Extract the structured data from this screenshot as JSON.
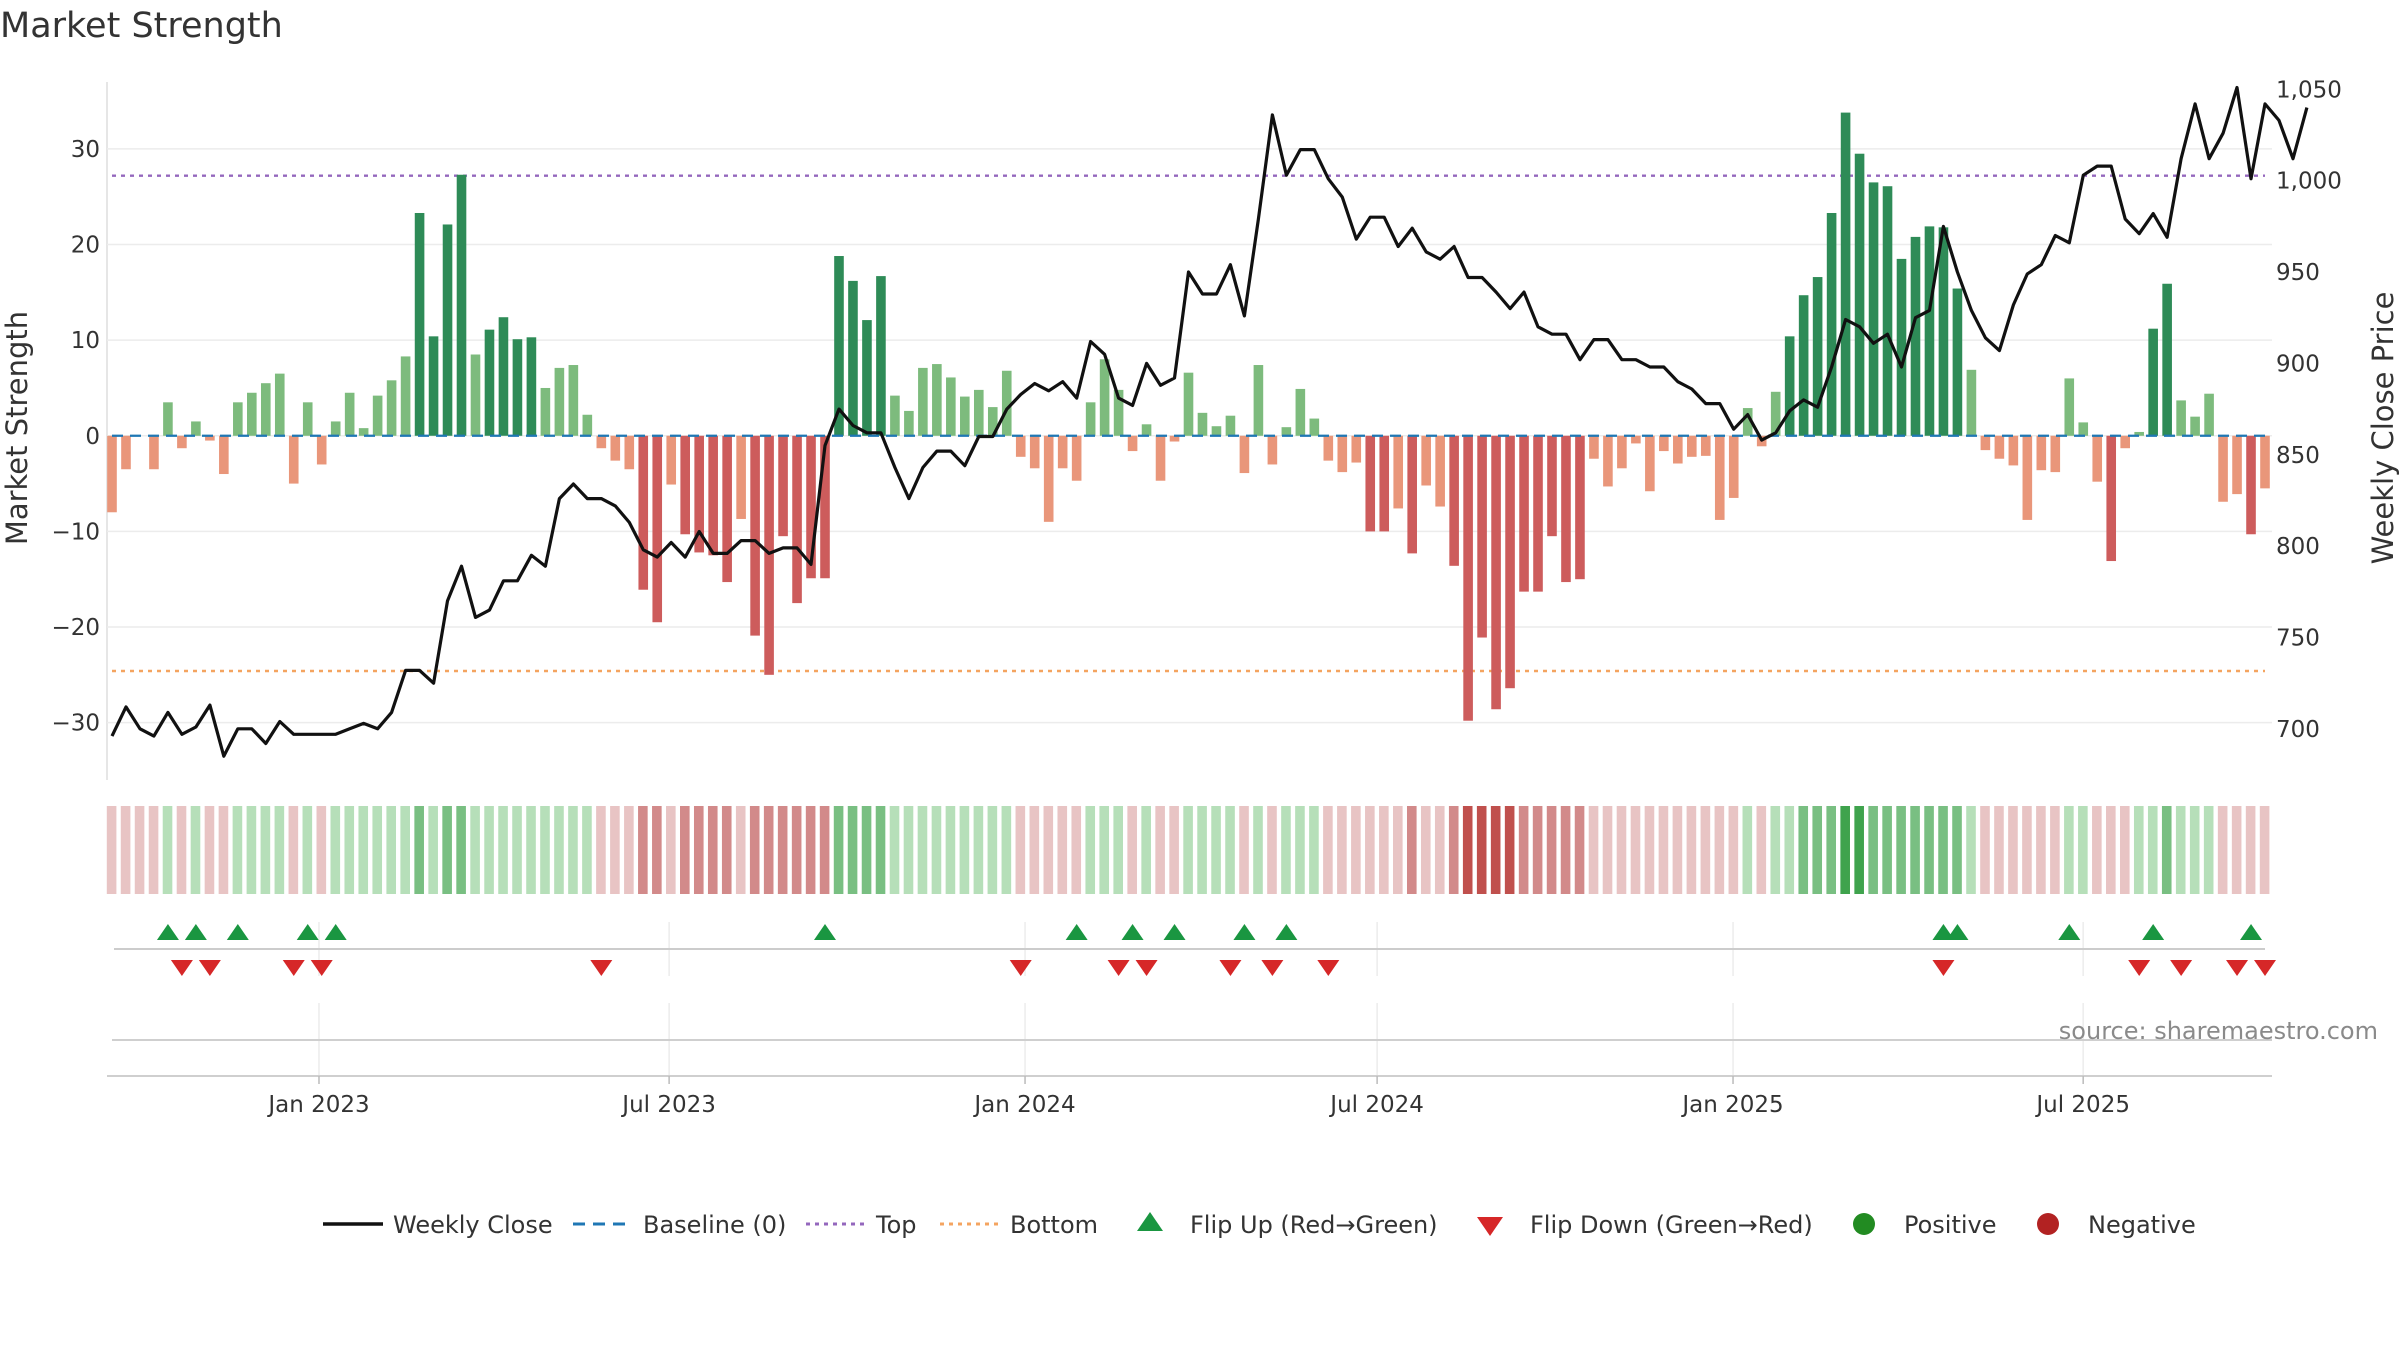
{
  "chart_data": {
    "type": "bar",
    "title": "Market Strength",
    "ylabel": "Market Strength",
    "y2label": "Weekly Close Price",
    "ylim": [
      -36,
      37
    ],
    "y2lim": [
      672,
      1054
    ],
    "yticks": [
      30,
      20,
      10,
      0,
      -10,
      -20,
      -30
    ],
    "yticklabels": [
      "30",
      "20",
      "10",
      "0",
      "−10",
      "−20",
      "−30"
    ],
    "y2ticks": [
      1050,
      1000,
      950,
      900,
      850,
      800,
      750,
      700
    ],
    "y2ticklabels": [
      "1,050",
      "1,000",
      "950",
      "900",
      "850",
      "800",
      "750",
      "700"
    ],
    "x_dates": [
      "2022-09-16",
      "2025-10-03"
    ],
    "xticks": [
      "Jan 2023",
      "Jul 2023",
      "Jan 2024",
      "Jul 2024",
      "Jan 2025",
      "Jul 2025"
    ],
    "top": 27.2,
    "bottom": -24.6,
    "baseline": 0,
    "strength": [
      -8,
      -3.5,
      0,
      -3.5,
      3.5,
      -1.3,
      1.5,
      -0.5,
      -4,
      3.5,
      4.5,
      5.5,
      6.5,
      -5,
      3.5,
      -3,
      1.5,
      4.5,
      0.8,
      4.2,
      5.8,
      8.3,
      23.3,
      10.4,
      22.1,
      27.3,
      8.5,
      11.1,
      12.4,
      10.1,
      10.3,
      5,
      7.1,
      7.4,
      2.2,
      -1.3,
      -2.6,
      -3.5,
      -16.1,
      -19.5,
      -5.1,
      -10.3,
      -12.2,
      -12.5,
      -15.3,
      -8.7,
      -20.9,
      -25,
      -10.5,
      -17.5,
      -14.9,
      -14.9,
      18.8,
      16.2,
      12.1,
      16.7,
      4.2,
      2.6,
      7.1,
      7.5,
      6.1,
      4.1,
      4.8,
      3,
      6.8,
      -2.2,
      -3.4,
      -9,
      -3.4,
      -4.7,
      3.5,
      8,
      4.8,
      -1.6,
      1.2,
      -4.7,
      -0.6,
      6.6,
      2.4,
      1,
      2.1,
      -3.9,
      7.4,
      -3,
      0.9,
      4.9,
      1.8,
      -2.6,
      -3.8,
      -2.8,
      -10,
      -10,
      -7.6,
      -12.3,
      -5.2,
      -7.4,
      -13.6,
      -29.8,
      -21.1,
      -28.6,
      -26.4,
      -16.3,
      -16.3,
      -10.5,
      -15.3,
      -15,
      -2.4,
      -5.3,
      -3.4,
      -0.8,
      -5.8,
      -1.6,
      -2.9,
      -2.2,
      -2.1,
      -8.8,
      -6.5,
      2.9,
      -1.1,
      4.6,
      10.4,
      14.7,
      16.6,
      23.3,
      33.8,
      29.5,
      26.5,
      26.1,
      18.5,
      20.8,
      21.9,
      21.8,
      15.4,
      6.9,
      -1.5,
      -2.4,
      -3.1,
      -8.8,
      -3.6,
      -3.8,
      6,
      1.4,
      -4.8,
      -13.1,
      -1.3,
      0.4,
      11.2,
      15.9,
      3.7,
      2,
      4.4,
      -6.9,
      -6.1,
      -10.3,
      -5.5
    ],
    "weekly_close": [
      696,
      712,
      700,
      696,
      709,
      697,
      701,
      713,
      685,
      700,
      700,
      692,
      704,
      697,
      697,
      697,
      697,
      700,
      703,
      700,
      709,
      732,
      732,
      725,
      770,
      789,
      761,
      765,
      781,
      781,
      795,
      789,
      826,
      834,
      826,
      826,
      822,
      813,
      798,
      794,
      802,
      794,
      808,
      796,
      796,
      803,
      803,
      796,
      799,
      799,
      790,
      855,
      875,
      866,
      862,
      862,
      843,
      826,
      843,
      852,
      852,
      844,
      860,
      860,
      875,
      883,
      889,
      885,
      890,
      881,
      912,
      905,
      881,
      877,
      900,
      888,
      892,
      950,
      938,
      938,
      954,
      926,
      979,
      1036,
      1003,
      1017,
      1017,
      1001,
      991,
      968,
      980,
      980,
      964,
      974,
      961,
      957,
      964,
      947,
      947,
      939,
      930,
      939,
      920,
      916,
      916,
      902,
      913,
      913,
      902,
      902,
      898,
      898,
      890,
      886,
      878,
      878,
      864,
      872,
      858,
      862,
      874,
      880,
      876,
      898,
      924,
      920,
      911,
      916,
      898,
      925,
      929,
      975,
      950,
      929,
      914,
      907,
      932,
      949,
      954,
      970,
      966,
      1003,
      1008,
      1008,
      979,
      971,
      982,
      969,
      1012,
      1042,
      1012,
      1026,
      1051,
      1001,
      1042,
      1033,
      1012,
      1040
    ],
    "color_band": [
      -1,
      -1,
      -1,
      -1,
      1,
      -1,
      1,
      -1,
      -1,
      1,
      1,
      1,
      1,
      -1,
      1,
      -1,
      1,
      1,
      1,
      1,
      1,
      1,
      2,
      1,
      2,
      2,
      1,
      1,
      1,
      1,
      1,
      1,
      1,
      1,
      1,
      -1,
      -1,
      -1,
      -2,
      -2,
      -1,
      -2,
      -2,
      -2,
      -2,
      -1,
      -2,
      -2,
      -2,
      -2,
      -2,
      -2,
      2,
      2,
      2,
      2,
      1,
      1,
      1,
      1,
      1,
      1,
      1,
      1,
      1,
      -1,
      -1,
      -1,
      -1,
      -1,
      1,
      1,
      1,
      -1,
      1,
      -1,
      -1,
      1,
      1,
      1,
      1,
      -1,
      1,
      -1,
      1,
      1,
      1,
      -1,
      -1,
      -1,
      -1,
      -1,
      -1,
      -2,
      -1,
      -1,
      -2,
      -3,
      -3,
      -3,
      -3,
      -2,
      -2,
      -2,
      -2,
      -2,
      -1,
      -1,
      -1,
      -1,
      -1,
      -1,
      -1,
      -1,
      -1,
      -1,
      -1,
      1,
      -1,
      1,
      1,
      2,
      2,
      2,
      3,
      3,
      2,
      2,
      2,
      2,
      2,
      2,
      2,
      1,
      -1,
      -1,
      -1,
      -1,
      -1,
      -1,
      1,
      1,
      -1,
      -1,
      -1,
      1,
      1,
      2,
      1,
      1,
      1,
      -1,
      -1,
      -1,
      -1
    ],
    "flips_up": [
      4,
      6,
      9,
      14,
      16,
      51,
      69,
      73,
      76,
      81,
      84,
      131,
      132,
      140,
      146,
      153
    ],
    "flips_down": [
      5,
      7,
      13,
      15,
      35,
      65,
      72,
      74,
      80,
      83,
      87,
      131,
      145,
      148,
      152,
      154
    ],
    "legend": [
      "Weekly Close",
      "Baseline (0)",
      "Top",
      "Bottom",
      "Flip Up (Red→Green)",
      "Flip Down (Green→Red)",
      "Positive",
      "Negative"
    ],
    "legend_position": "bottom",
    "source": "source: sharemaestro.com",
    "colors": {
      "pos_strong": "#2e8b57",
      "pos_weak": "#7dbb7d",
      "neg_strong": "#cd5c5c",
      "neg_weak": "#e9967a",
      "line": "#111111",
      "baseline": "#1f77b4",
      "top": "#9467bd",
      "bottom": "#f4a460",
      "flip_up": "#1a9641",
      "flip_down": "#d62728",
      "positive_dot": "#228b22",
      "negative_dot": "#b22222"
    }
  }
}
